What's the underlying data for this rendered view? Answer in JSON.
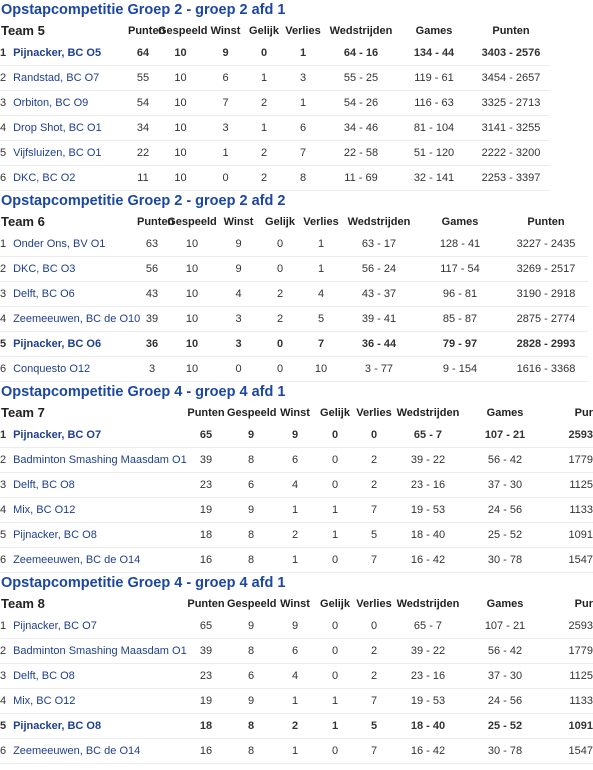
{
  "sections": [
    {
      "title": "Opstapcompetitie Groep 2 - groep 2 afd 1",
      "team": "Team 5",
      "headers": [
        "Punten",
        "Gespeeld",
        "Winst",
        "Gelijk",
        "Verlies",
        "Wedstrijden",
        "Games",
        "Punten"
      ],
      "rows": [
        {
          "rank": "1",
          "name": "Pijnacker, BC O5",
          "punten": "64",
          "gespeeld": "10",
          "winst": "9",
          "gelijk": "0",
          "verlies": "1",
          "wedstrijden": "64 - 16",
          "games": "134 - 44",
          "punten2": "3403 - 2576",
          "highlight": true
        },
        {
          "rank": "2",
          "name": "Randstad, BC O7",
          "punten": "55",
          "gespeeld": "10",
          "winst": "6",
          "gelijk": "1",
          "verlies": "3",
          "wedstrijden": "55 - 25",
          "games": "119 - 61",
          "punten2": "3454 - 2657",
          "highlight": false
        },
        {
          "rank": "3",
          "name": "Orbiton, BC O9",
          "punten": "54",
          "gespeeld": "10",
          "winst": "7",
          "gelijk": "2",
          "verlies": "1",
          "wedstrijden": "54 - 26",
          "games": "116 - 63",
          "punten2": "3325 - 2713",
          "highlight": false
        },
        {
          "rank": "4",
          "name": "Drop Shot, BC O1",
          "punten": "34",
          "gespeeld": "10",
          "winst": "3",
          "gelijk": "1",
          "verlies": "6",
          "wedstrijden": "34 - 46",
          "games": "81 - 104",
          "punten2": "3141 - 3255",
          "highlight": false
        },
        {
          "rank": "5",
          "name": "Vijfsluizen, BC O1",
          "punten": "22",
          "gespeeld": "10",
          "winst": "1",
          "gelijk": "2",
          "verlies": "7",
          "wedstrijden": "22 - 58",
          "games": "51 - 120",
          "punten2": "2222 - 3200",
          "highlight": false
        },
        {
          "rank": "6",
          "name": "DKC, BC O2",
          "punten": "11",
          "gespeeld": "10",
          "winst": "0",
          "gelijk": "2",
          "verlies": "8",
          "wedstrijden": "11 - 69",
          "games": "32 - 141",
          "punten2": "2253 - 3397",
          "highlight": false
        }
      ]
    },
    {
      "title": "Opstapcompetitie Groep 2 - groep 2 afd 2",
      "team": "Team 6",
      "headers": [
        "Punten",
        "Gespeeld",
        "Winst",
        "Gelijk",
        "Verlies",
        "Wedstrijden",
        "Games",
        "Punten"
      ],
      "rows": [
        {
          "rank": "1",
          "name": "Onder Ons, BV O1",
          "punten": "63",
          "gespeeld": "10",
          "winst": "9",
          "gelijk": "0",
          "verlies": "1",
          "wedstrijden": "63 - 17",
          "games": "128 - 41",
          "punten2": "3227 - 2435",
          "highlight": false
        },
        {
          "rank": "2",
          "name": "DKC, BC O3",
          "punten": "56",
          "gespeeld": "10",
          "winst": "9",
          "gelijk": "0",
          "verlies": "1",
          "wedstrijden": "56 - 24",
          "games": "117 - 54",
          "punten2": "3269 - 2517",
          "highlight": false
        },
        {
          "rank": "3",
          "name": "Delft, BC O6",
          "punten": "43",
          "gespeeld": "10",
          "winst": "4",
          "gelijk": "2",
          "verlies": "4",
          "wedstrijden": "43 - 37",
          "games": "96 - 81",
          "punten2": "3190 - 2918",
          "highlight": false
        },
        {
          "rank": "4",
          "name": "Zeemeeuwen, BC de O10",
          "punten": "39",
          "gespeeld": "10",
          "winst": "3",
          "gelijk": "2",
          "verlies": "5",
          "wedstrijden": "39 - 41",
          "games": "85 - 87",
          "punten2": "2875 - 2774",
          "highlight": false
        },
        {
          "rank": "5",
          "name": "Pijnacker, BC O6",
          "punten": "36",
          "gespeeld": "10",
          "winst": "3",
          "gelijk": "0",
          "verlies": "7",
          "wedstrijden": "36 - 44",
          "games": "79 - 97",
          "punten2": "2828 - 2993",
          "highlight": true
        },
        {
          "rank": "6",
          "name": "Conquesto O12",
          "punten": "3",
          "gespeeld": "10",
          "winst": "0",
          "gelijk": "0",
          "verlies": "10",
          "wedstrijden": "3 - 77",
          "games": "9 - 154",
          "punten2": "1616 - 3368",
          "highlight": false
        }
      ]
    },
    {
      "title": "Opstapcompetitie Groep 4 - groep 4 afd 1",
      "team": "Team 7",
      "headers": [
        "Punten",
        "Gespeeld",
        "Winst",
        "Gelijk",
        "Verlies",
        "Wedstrijden",
        "Games",
        "Pur"
      ],
      "rows": [
        {
          "rank": "1",
          "name": "Pijnacker, BC O7",
          "punten": "65",
          "gespeeld": "9",
          "winst": "9",
          "gelijk": "0",
          "verlies": "0",
          "wedstrijden": "65 - 7",
          "games": "107 - 21",
          "punten2": "2593",
          "highlight": true
        },
        {
          "rank": "2",
          "name": "Badminton Smashing Maasdam O1",
          "punten": "39",
          "gespeeld": "8",
          "winst": "6",
          "gelijk": "0",
          "verlies": "2",
          "wedstrijden": "39 - 22",
          "games": "56 - 42",
          "punten2": "1779",
          "highlight": false
        },
        {
          "rank": "3",
          "name": "Delft, BC O8",
          "punten": "23",
          "gespeeld": "6",
          "winst": "4",
          "gelijk": "0",
          "verlies": "2",
          "wedstrijden": "23 - 16",
          "games": "37 - 30",
          "punten2": "1125",
          "highlight": false
        },
        {
          "rank": "4",
          "name": "Mix, BC O12",
          "punten": "19",
          "gespeeld": "9",
          "winst": "1",
          "gelijk": "1",
          "verlies": "7",
          "wedstrijden": "19 - 53",
          "games": "24 - 56",
          "punten2": "1133",
          "highlight": false
        },
        {
          "rank": "5",
          "name": "Pijnacker, BC O8",
          "punten": "18",
          "gespeeld": "8",
          "winst": "2",
          "gelijk": "1",
          "verlies": "5",
          "wedstrijden": "18 - 40",
          "games": "25 - 52",
          "punten2": "1091",
          "highlight": false
        },
        {
          "rank": "6",
          "name": "Zeemeeuwen, BC de O14",
          "punten": "16",
          "gespeeld": "8",
          "winst": "1",
          "gelijk": "0",
          "verlies": "7",
          "wedstrijden": "16 - 42",
          "games": "30 - 78",
          "punten2": "1547",
          "highlight": false
        }
      ]
    },
    {
      "title": "Opstapcompetitie Groep 4 - groep 4 afd 1",
      "team": "Team 8",
      "headers": [
        "Punten",
        "Gespeeld",
        "Winst",
        "Gelijk",
        "Verlies",
        "Wedstrijden",
        "Games",
        "Pur"
      ],
      "rows": [
        {
          "rank": "1",
          "name": "Pijnacker, BC O7",
          "punten": "65",
          "gespeeld": "9",
          "winst": "9",
          "gelijk": "0",
          "verlies": "0",
          "wedstrijden": "65 - 7",
          "games": "107 - 21",
          "punten2": "2593",
          "highlight": false
        },
        {
          "rank": "2",
          "name": "Badminton Smashing Maasdam O1",
          "punten": "39",
          "gespeeld": "8",
          "winst": "6",
          "gelijk": "0",
          "verlies": "2",
          "wedstrijden": "39 - 22",
          "games": "56 - 42",
          "punten2": "1779",
          "highlight": false
        },
        {
          "rank": "3",
          "name": "Delft, BC O8",
          "punten": "23",
          "gespeeld": "6",
          "winst": "4",
          "gelijk": "0",
          "verlies": "2",
          "wedstrijden": "23 - 16",
          "games": "37 - 30",
          "punten2": "1125",
          "highlight": false
        },
        {
          "rank": "4",
          "name": "Mix, BC O12",
          "punten": "19",
          "gespeeld": "9",
          "winst": "1",
          "gelijk": "1",
          "verlies": "7",
          "wedstrijden": "19 - 53",
          "games": "24 - 56",
          "punten2": "1133",
          "highlight": false
        },
        {
          "rank": "5",
          "name": "Pijnacker, BC O8",
          "punten": "18",
          "gespeeld": "8",
          "winst": "2",
          "gelijk": "1",
          "verlies": "5",
          "wedstrijden": "18 - 40",
          "games": "25 - 52",
          "punten2": "1091",
          "highlight": true
        },
        {
          "rank": "6",
          "name": "Zeemeeuwen, BC de O14",
          "punten": "16",
          "gespeeld": "8",
          "winst": "1",
          "gelijk": "0",
          "verlies": "7",
          "wedstrijden": "16 - 42",
          "games": "30 - 78",
          "punten2": "1547",
          "highlight": false
        }
      ]
    }
  ]
}
